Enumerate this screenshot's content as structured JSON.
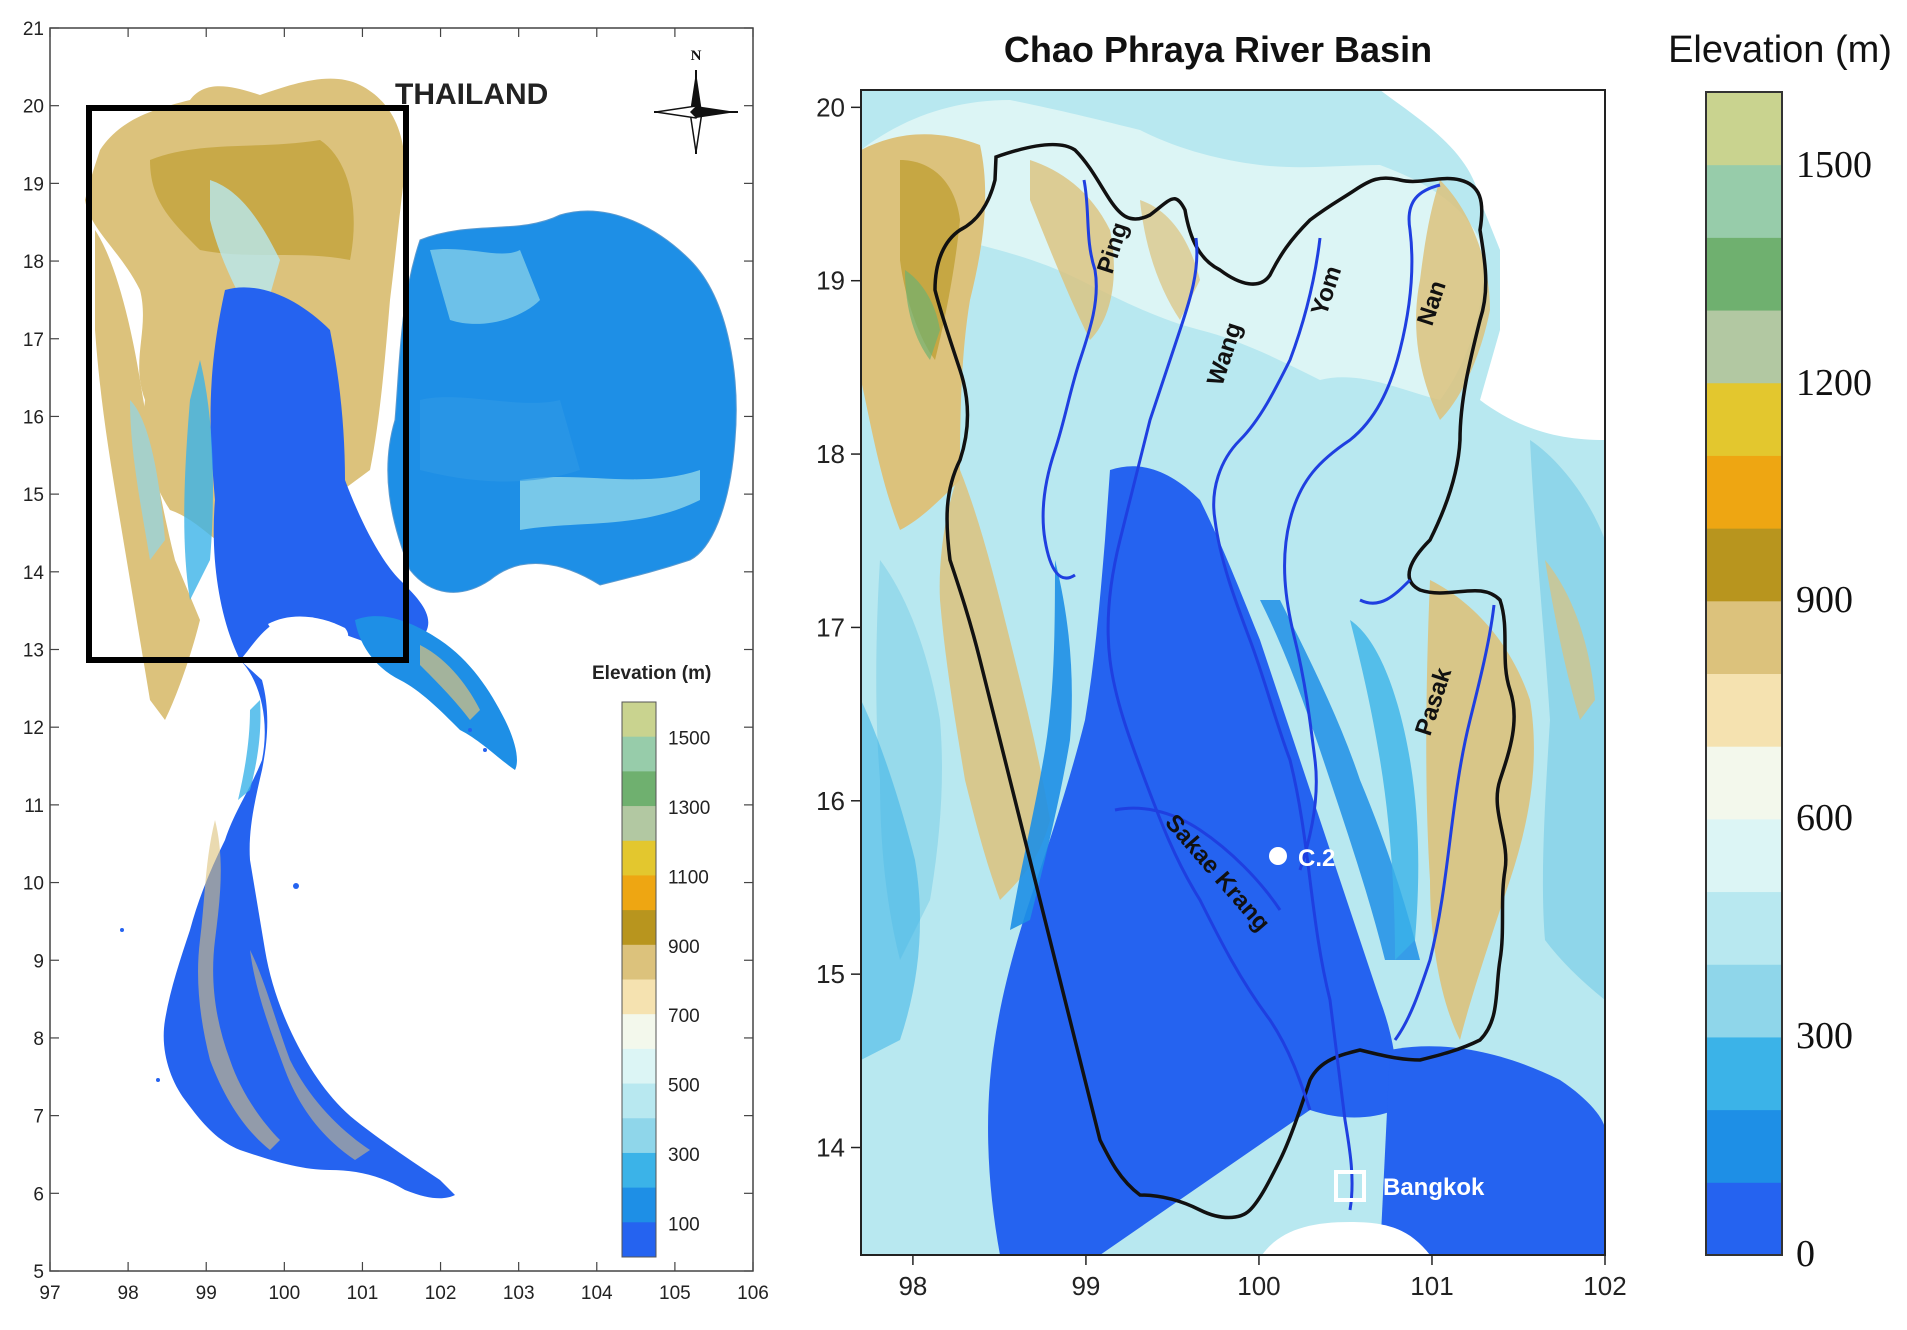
{
  "left_map": {
    "title": "THAILAND",
    "north_label": "N",
    "x_ticks": [
      "97",
      "98",
      "99",
      "100",
      "101",
      "102",
      "103",
      "104",
      "105",
      "106"
    ],
    "y_ticks": [
      "5",
      "6",
      "7",
      "8",
      "9",
      "10",
      "11",
      "12",
      "13",
      "14",
      "15",
      "16",
      "17",
      "18",
      "19",
      "20",
      "21"
    ],
    "legend": {
      "title": "Elevation (m)",
      "labels": [
        "1500",
        "1300",
        "1100",
        "900",
        "700",
        "500",
        "300",
        "100"
      ]
    }
  },
  "right_map": {
    "title": "Chao Phraya River Basin",
    "x_ticks": [
      "98",
      "99",
      "100",
      "101",
      "102"
    ],
    "y_ticks": [
      "14",
      "15",
      "16",
      "17",
      "18",
      "19",
      "20"
    ],
    "rivers": [
      "Ping",
      "Wang",
      "Yom",
      "Nan",
      "Pasak",
      "Sakae Krang"
    ],
    "station_label": "C.2",
    "city_label": "Bangkok"
  },
  "colorbar": {
    "title": "Elevation (m)",
    "labels": [
      "1500",
      "1200",
      "900",
      "600",
      "300",
      "0"
    ]
  },
  "palette": {
    "classes": [
      "#2563f0",
      "#1e8fe6",
      "#3bb3e8",
      "#8fd6ea",
      "#b8e8f0",
      "#dcf5f5",
      "#f3f8ec",
      "#f5e2b0",
      "#dcc27c",
      "#b8951e",
      "#eea612",
      "#e3c72e",
      "#b2c8a2",
      "#6fb06f",
      "#97ccaa",
      "#c9d38f"
    ],
    "basin_outline": "#111111",
    "river": "#1f3fe0",
    "study_box": "#000000"
  }
}
